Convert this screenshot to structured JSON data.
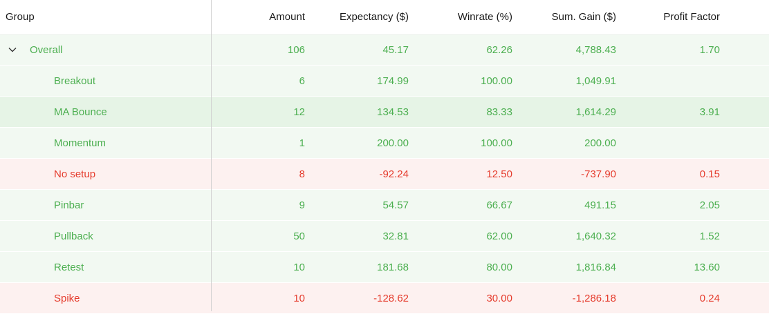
{
  "headers": {
    "group": "Group",
    "amount": "Amount",
    "expectancy": "Expectancy ($)",
    "winrate": "Winrate (%)",
    "sum_gain": "Sum. Gain ($)",
    "profit_factor": "Profit Factor"
  },
  "overall": {
    "label": "Overall",
    "amount": "106",
    "expectancy": "45.17",
    "winrate": "62.26",
    "sum_gain": "4,788.43",
    "profit_factor": "1.70",
    "expanded": true,
    "expander_icon": "chevron-down-icon"
  },
  "rows": [
    {
      "group": "Breakout",
      "amount": "6",
      "expectancy": "174.99",
      "winrate": "100.00",
      "sum_gain": "1,049.91",
      "profit_factor": "",
      "status": "positive"
    },
    {
      "group": "MA Bounce",
      "amount": "12",
      "expectancy": "134.53",
      "winrate": "83.33",
      "sum_gain": "1,614.29",
      "profit_factor": "3.91",
      "status": "positive",
      "selected": true
    },
    {
      "group": "Momentum",
      "amount": "1",
      "expectancy": "200.00",
      "winrate": "100.00",
      "sum_gain": "200.00",
      "profit_factor": "",
      "status": "positive"
    },
    {
      "group": "No setup",
      "amount": "8",
      "expectancy": "-92.24",
      "winrate": "12.50",
      "sum_gain": "-737.90",
      "profit_factor": "0.15",
      "status": "negative"
    },
    {
      "group": "Pinbar",
      "amount": "9",
      "expectancy": "54.57",
      "winrate": "66.67",
      "sum_gain": "491.15",
      "profit_factor": "2.05",
      "status": "positive"
    },
    {
      "group": "Pullback",
      "amount": "50",
      "expectancy": "32.81",
      "winrate": "62.00",
      "sum_gain": "1,640.32",
      "profit_factor": "1.52",
      "status": "positive"
    },
    {
      "group": "Retest",
      "amount": "10",
      "expectancy": "181.68",
      "winrate": "80.00",
      "sum_gain": "1,816.84",
      "profit_factor": "13.60",
      "status": "positive"
    },
    {
      "group": "Spike",
      "amount": "10",
      "expectancy": "-128.62",
      "winrate": "30.00",
      "sum_gain": "-1,286.18",
      "profit_factor": "0.24",
      "status": "negative"
    }
  ],
  "colors": {
    "positive_text": "#4caf50",
    "negative_text": "#e53b2c",
    "positive_bg": "#f2f9f2",
    "selected_bg": "#e6f4e6",
    "negative_bg": "#fdf1f0"
  }
}
